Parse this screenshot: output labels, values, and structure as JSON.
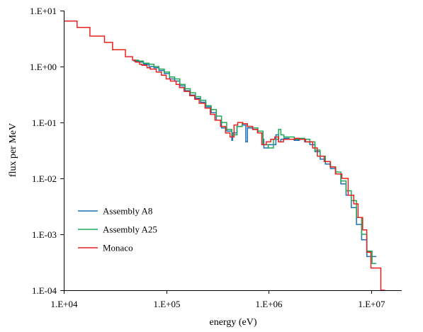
{
  "chart_data": {
    "type": "line",
    "title": "",
    "xlabel": "energy (eV)",
    "ylabel": "flux per MeV",
    "x_scale": "log",
    "y_scale": "log",
    "xlim": [
      10000,
      20000000
    ],
    "ylim": [
      0.0001,
      10
    ],
    "x_ticks": [
      {
        "value": 10000,
        "label": "1.E+04"
      },
      {
        "value": 100000,
        "label": "1.E+05"
      },
      {
        "value": 1000000,
        "label": "1.E+06"
      },
      {
        "value": 10000000,
        "label": "1.E+07"
      }
    ],
    "y_ticks": [
      {
        "value": 0.0001,
        "label": "1.E-04"
      },
      {
        "value": 0.001,
        "label": "1.E-03"
      },
      {
        "value": 0.01,
        "label": "1.E-02"
      },
      {
        "value": 0.1,
        "label": "1.E-01"
      },
      {
        "value": 1,
        "label": "1.E+00"
      },
      {
        "value": 10,
        "label": "1.E+01"
      }
    ],
    "grid": false,
    "legend_position": "lower-left",
    "series": [
      {
        "name": "Assembly A8",
        "color": "#1f6fb4",
        "x": [
          48000,
          54000,
          60000,
          68000,
          76000,
          85000,
          96000,
          108000,
          121000,
          136000,
          153000,
          172000,
          193000,
          217000,
          244000,
          275000,
          309000,
          347000,
          390000,
          438000,
          445000,
          492000,
          553000,
          600000,
          622000,
          699000,
          786000,
          883000,
          900000,
          993000,
          1116000,
          1180000,
          1254000,
          1320000,
          1410000,
          1585000,
          1781000,
          2002000,
          2250000,
          2530000,
          2840000,
          3190000,
          3590000,
          4030000,
          4530000,
          5090000,
          5720000,
          6430000,
          7230000,
          8120000,
          9130000,
          10260000
        ],
        "y": [
          1.25,
          1.2,
          1.1,
          1.0,
          0.95,
          0.85,
          0.75,
          0.6,
          0.55,
          0.45,
          0.37,
          0.31,
          0.27,
          0.23,
          0.19,
          0.15,
          0.11,
          0.08,
          0.07,
          0.048,
          0.065,
          0.085,
          0.09,
          0.045,
          0.08,
          0.075,
          0.065,
          0.05,
          0.035,
          0.04,
          0.04,
          0.06,
          0.045,
          0.05,
          0.052,
          0.05,
          0.048,
          0.05,
          0.045,
          0.04,
          0.03,
          0.022,
          0.018,
          0.015,
          0.012,
          0.008,
          0.005,
          0.003,
          0.0015,
          0.0008,
          0.0004,
          0.0004
        ]
      },
      {
        "name": "Assembly A25",
        "color": "#1fa85a",
        "x": [
          48000,
          54000,
          60000,
          68000,
          76000,
          85000,
          96000,
          108000,
          121000,
          136000,
          153000,
          172000,
          193000,
          217000,
          244000,
          275000,
          309000,
          347000,
          390000,
          438000,
          492000,
          553000,
          622000,
          699000,
          786000,
          883000,
          993000,
          1116000,
          1254000,
          1320000,
          1410000,
          1585000,
          1781000,
          2002000,
          2250000,
          2530000,
          2840000,
          3190000,
          3590000,
          4030000,
          4530000,
          5090000,
          5720000,
          6430000,
          7230000,
          8120000,
          9130000,
          10260000
        ],
        "y": [
          1.3,
          1.25,
          1.15,
          1.1,
          1.0,
          0.9,
          0.8,
          0.65,
          0.6,
          0.48,
          0.4,
          0.34,
          0.29,
          0.25,
          0.2,
          0.17,
          0.13,
          0.1,
          0.075,
          0.06,
          0.085,
          0.095,
          0.085,
          0.08,
          0.07,
          0.04,
          0.035,
          0.05,
          0.075,
          0.06,
          0.055,
          0.055,
          0.05,
          0.052,
          0.05,
          0.045,
          0.032,
          0.025,
          0.02,
          0.016,
          0.013,
          0.009,
          0.006,
          0.004,
          0.002,
          0.001,
          0.0005,
          0.0003
        ]
      },
      {
        "name": "Monaco",
        "color": "#e8201e",
        "x": [
          10000,
          13500,
          18000,
          25000,
          30000,
          40000,
          47000,
          50000,
          55000,
          58000,
          65000,
          70000,
          80000,
          90000,
          100000,
          110000,
          125000,
          135000,
          150000,
          170000,
          190000,
          210000,
          240000,
          270000,
          300000,
          340000,
          380000,
          420000,
          460000,
          500000,
          560000,
          620000,
          700000,
          780000,
          860000,
          950000,
          1050000,
          1150000,
          1250000,
          1400000,
          1600000,
          1800000,
          2000000,
          2300000,
          2700000,
          3000000,
          3500000,
          4000000,
          4500000,
          5200000,
          6000000,
          6800000,
          7500000,
          8300000,
          9100000,
          10000000,
          11000000,
          12500000
        ],
        "y": [
          6.5,
          5.0,
          3.5,
          2.7,
          2.0,
          1.5,
          1.3,
          1.2,
          1.1,
          1.05,
          0.95,
          0.9,
          0.8,
          0.7,
          0.6,
          0.55,
          0.48,
          0.42,
          0.36,
          0.3,
          0.26,
          0.22,
          0.18,
          0.14,
          0.11,
          0.085,
          0.065,
          0.055,
          0.09,
          0.1,
          0.095,
          0.085,
          0.075,
          0.065,
          0.04,
          0.045,
          0.05,
          0.055,
          0.045,
          0.05,
          0.05,
          0.052,
          0.05,
          0.045,
          0.035,
          0.025,
          0.02,
          0.016,
          0.012,
          0.01,
          0.005,
          0.0035,
          0.002,
          0.0012,
          0.00048,
          0.00025,
          0.00025,
          0.0001
        ]
      }
    ]
  }
}
